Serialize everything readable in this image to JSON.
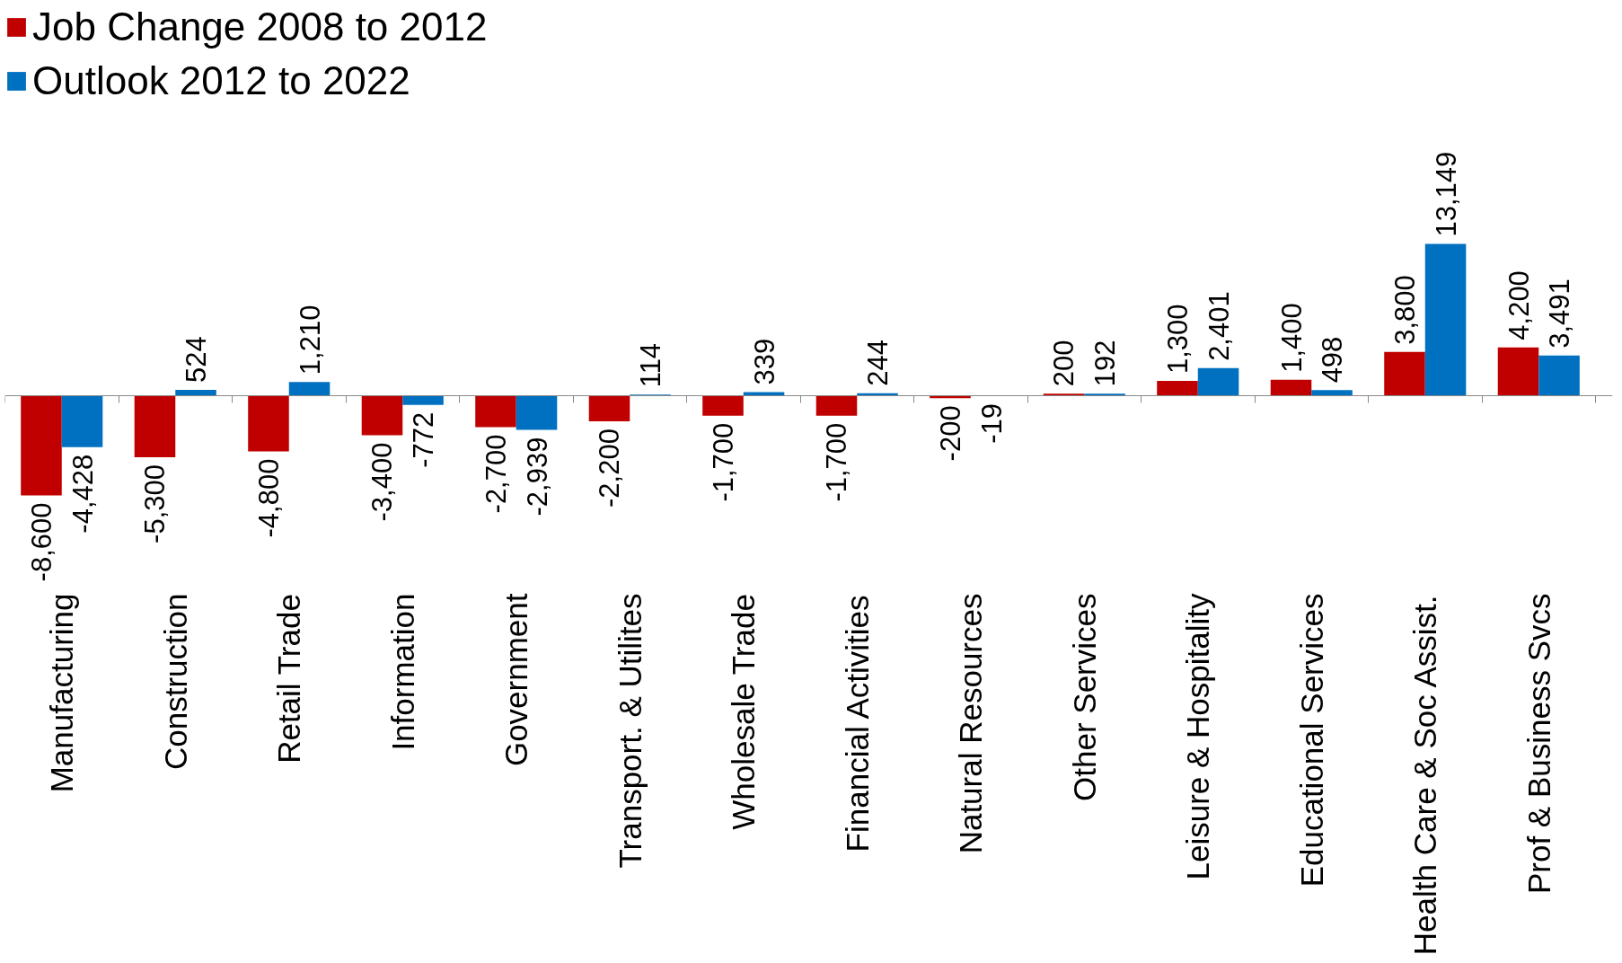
{
  "chart_data": {
    "type": "bar",
    "categories": [
      "Manufacturing",
      "Construction",
      "Retail Trade",
      "Information",
      "Government",
      "Transport. & Utilites",
      "Wholesale Trade",
      "Financial Activities",
      "Natural Resources",
      "Other Services",
      "Leisure & Hospitality",
      "Educational Services",
      "Health Care & Soc Assist.",
      "Prof & Business Svcs"
    ],
    "series": [
      {
        "name": "Job Change 2008 to 2012",
        "color": "#c00000",
        "values": [
          -8600,
          -5300,
          -4800,
          -3400,
          -2700,
          -2200,
          -1700,
          -1700,
          -200,
          200,
          1300,
          1400,
          3800,
          4200
        ],
        "value_labels": [
          "-8,600",
          "-5,300",
          "-4,800",
          "-3,400",
          "-2,700",
          "-2,200",
          "-1,700",
          "-1,700",
          "-200",
          "200",
          "1,300",
          "1,400",
          "3,800",
          "4,200"
        ]
      },
      {
        "name": "Outlook 2012 to 2022",
        "color": "#0070c0",
        "values": [
          -4428,
          524,
          1210,
          -772,
          -2939,
          114,
          339,
          244,
          -19,
          192,
          2401,
          498,
          13149,
          3491
        ],
        "value_labels": [
          "-4,428",
          "524",
          "1,210",
          "-772",
          "-2,939",
          "114",
          "339",
          "244",
          "-19",
          "192",
          "2,401",
          "498",
          "13,149",
          "3,491"
        ]
      }
    ],
    "legend": "top left",
    "tick_labels": "x",
    "grid": false
  }
}
